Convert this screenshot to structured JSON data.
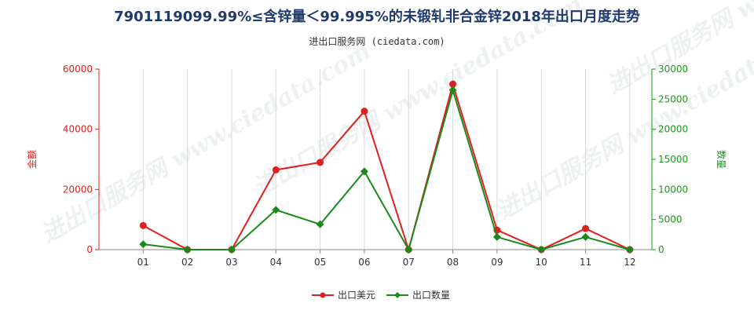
{
  "chart_data": {
    "type": "line",
    "title": "7901119099.99%≤含锌量＜99.995%的未锻轧非合金锌2018年出口月度走势",
    "subtitle": "进出口服务网 (ciedata.com)",
    "categories": [
      "01",
      "02",
      "03",
      "04",
      "05",
      "06",
      "07",
      "08",
      "09",
      "10",
      "11",
      "12"
    ],
    "left_axis": {
      "label": "金额",
      "ylim": [
        0,
        60000
      ],
      "ticks": [
        0,
        20000,
        40000,
        60000
      ],
      "color": "#e02020"
    },
    "right_axis": {
      "label": "数量",
      "ylim": [
        0,
        30000
      ],
      "ticks": [
        0,
        5000,
        10000,
        15000,
        20000,
        25000,
        30000
      ],
      "color": "#1a9a1a"
    },
    "series": [
      {
        "name": "出口美元",
        "axis": "left",
        "color": "#e02020",
        "marker": "circle",
        "values": [
          8000,
          0,
          0,
          26500,
          29000,
          46000,
          0,
          55000,
          6500,
          0,
          7000,
          0
        ]
      },
      {
        "name": "出口数量",
        "axis": "right",
        "color": "#1a8a1a",
        "marker": "diamond",
        "values": [
          900,
          0,
          0,
          6600,
          4200,
          13000,
          0,
          26500,
          2100,
          0,
          2100,
          0
        ]
      }
    ],
    "grid": "vertical",
    "legend": "bottom-center",
    "watermark": "进出口服务网 www.ciedata.com"
  }
}
